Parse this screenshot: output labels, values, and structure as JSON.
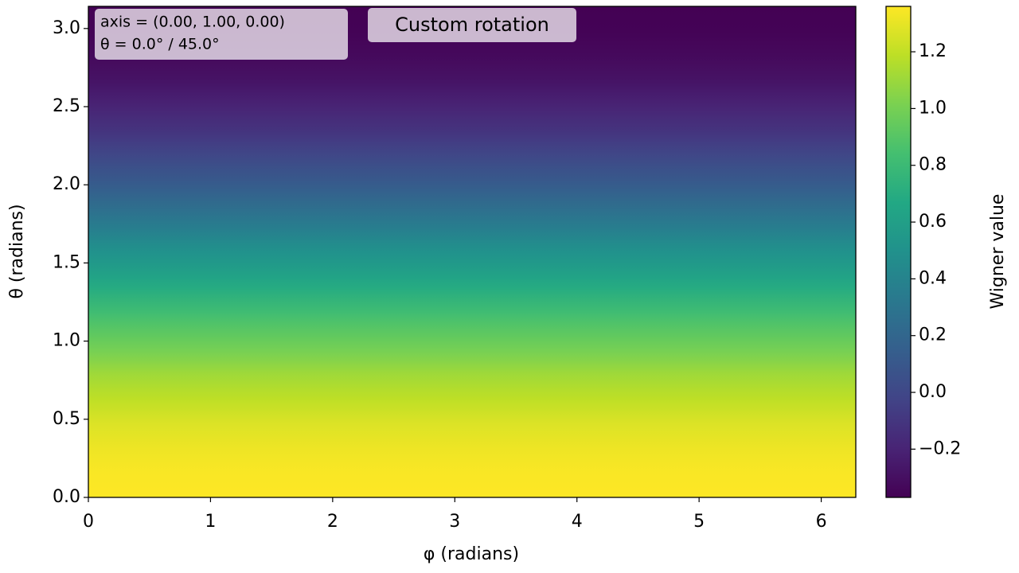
{
  "chart_data": {
    "type": "heatmap",
    "x_label": "φ (radians)",
    "y_label": "θ (radians)",
    "colorbar_label": "Wigner value",
    "annotations": [
      "axis = (0.00, 1.00, 0.00)",
      "θ = 0.0° / 45.0°",
      "Custom rotation"
    ],
    "y": [
      0,
      0.16,
      0.31,
      0.47,
      0.63,
      0.79,
      0.94,
      1.1,
      1.26,
      1.41,
      1.57,
      1.73,
      1.88,
      2.04,
      2.2,
      2.36,
      2.51,
      2.67,
      2.83,
      2.98,
      3.14
    ],
    "values": [
      1.36,
      1.35,
      1.32,
      1.27,
      1.19,
      1.11,
      1.0,
      0.89,
      0.76,
      0.63,
      0.5,
      0.36,
      0.23,
      0.1,
      -0.01,
      -0.12,
      -0.2,
      -0.28,
      -0.33,
      -0.36,
      -0.37
    ],
    "colormap": "viridis",
    "xlim": [
      0,
      6.283
    ],
    "xticks": [
      0,
      1,
      2,
      3,
      4,
      5,
      6
    ],
    "ylim": [
      0,
      3.1416
    ],
    "yticks": [
      {
        "value": 0,
        "label": "0.0"
      },
      0.5,
      {
        "value": 1,
        "label": "1.0"
      },
      1.5,
      {
        "value": 2,
        "label": "2.0"
      },
      2.5,
      {
        "value": 3,
        "label": "3.0"
      }
    ],
    "clim": [
      -0.37,
      1.36
    ],
    "cticks": [
      {
        "value": -0.2,
        "label": "−0.2"
      },
      {
        "value": 0,
        "label": "0.0"
      },
      0.2,
      0.4,
      0.6,
      0.8,
      {
        "value": 1,
        "label": "1.0"
      },
      1.2
    ]
  }
}
